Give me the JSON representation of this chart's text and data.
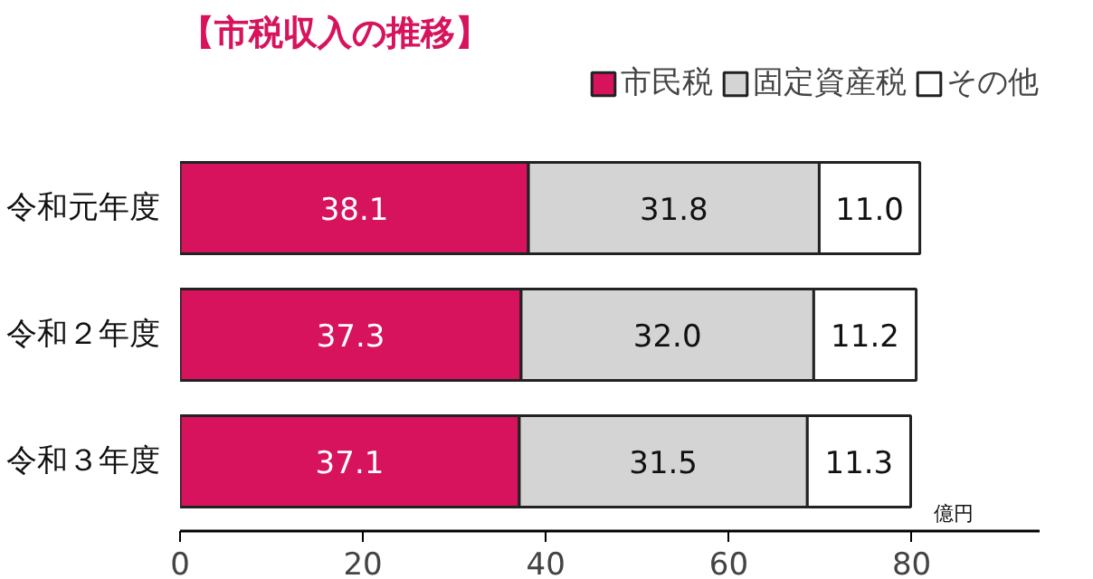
{
  "chart_data": {
    "type": "bar",
    "orientation": "horizontal",
    "stacked": true,
    "title": "【市税収入の推移】",
    "xlabel": "億円",
    "categories": [
      "令和元年度",
      "令和２年度",
      "令和３年度"
    ],
    "series": [
      {
        "name": "市民税",
        "color": "#d6135c",
        "values": [
          38.1,
          37.3,
          37.1
        ]
      },
      {
        "name": "固定資産税",
        "color": "#d4d4d4",
        "values": [
          31.8,
          32.0,
          31.5
        ]
      },
      {
        "name": "その他",
        "color": "#ffffff",
        "values": [
          11.0,
          11.2,
          11.3
        ]
      }
    ],
    "value_labels": [
      [
        "38.1",
        "37.3",
        "37.1"
      ],
      [
        "31.8",
        "32.0",
        "31.5"
      ],
      [
        "11.0",
        "11.2",
        "11.3"
      ]
    ],
    "xlim": [
      0,
      94
    ],
    "xticks": [
      0,
      20,
      40,
      60,
      80
    ],
    "grid": false,
    "legend": "top right"
  }
}
